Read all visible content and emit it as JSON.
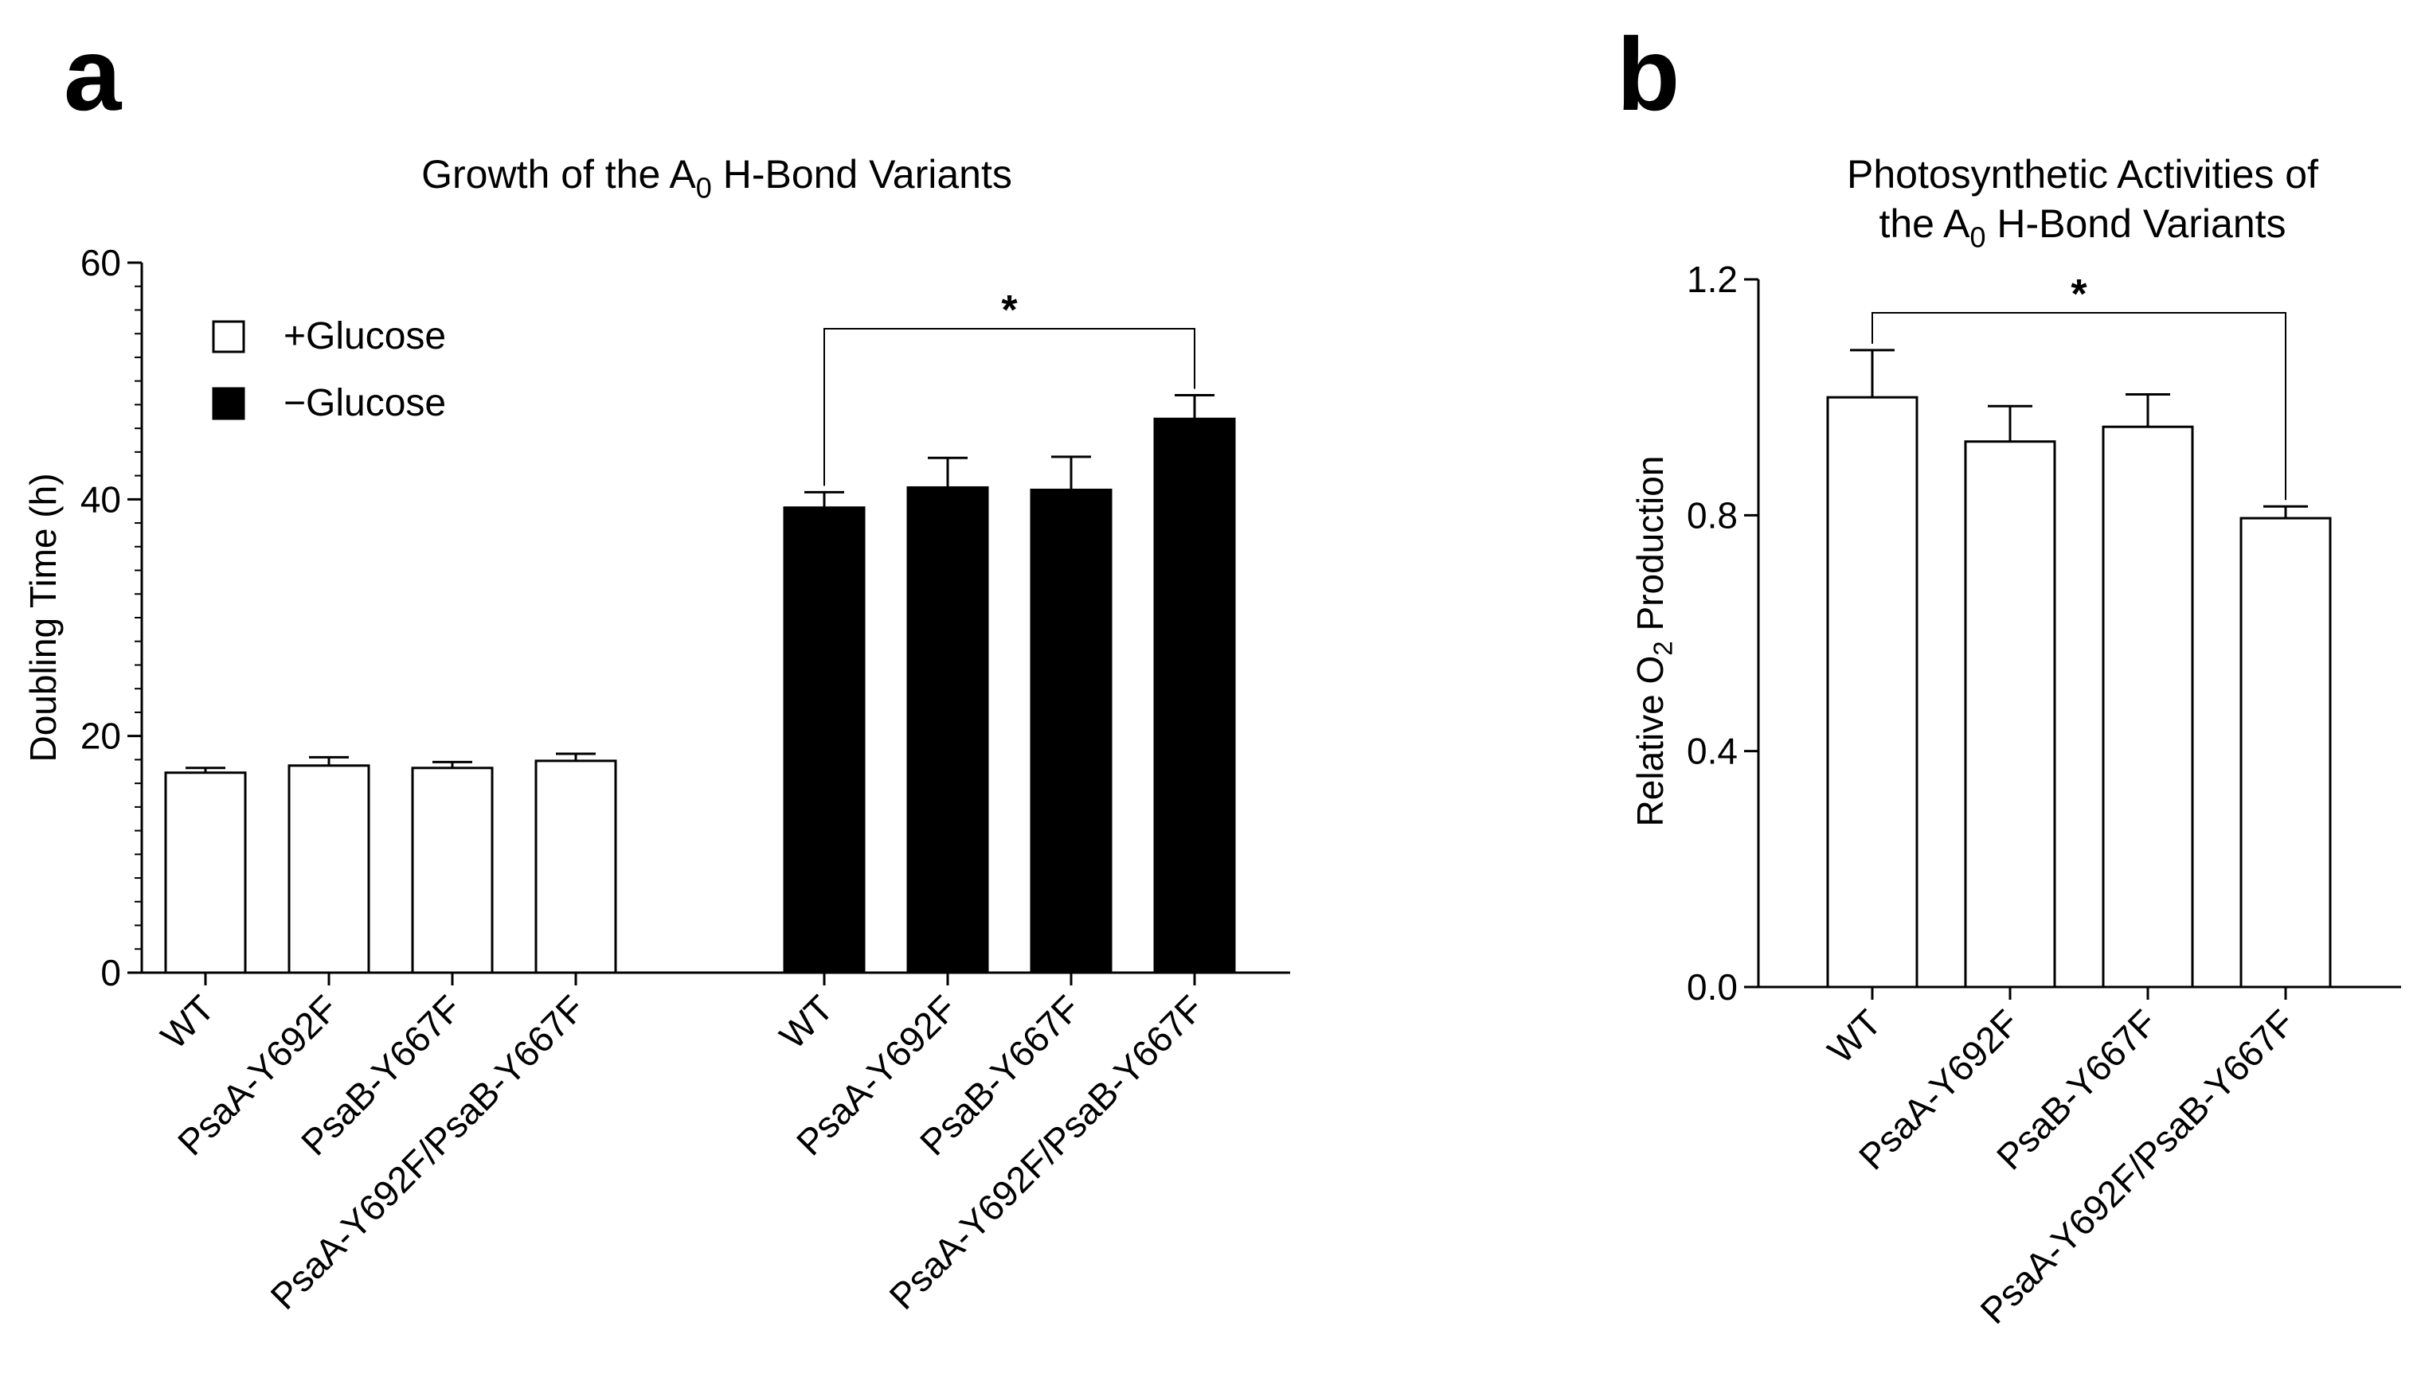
{
  "panels": {
    "a": {
      "letter": "a"
    },
    "b": {
      "letter": "b"
    }
  },
  "chart_data": [
    {
      "type": "bar",
      "panel": "a",
      "title": "Growth of the A0 H-Bond Variants",
      "title_parts": {
        "before": "Growth of the A",
        "sub": "0",
        "after": " H-Bond Variants"
      },
      "xlabel": "",
      "ylabel": "Doubling Time (h)",
      "ylim": [
        0,
        60
      ],
      "yticks": [
        0,
        20,
        40,
        60
      ],
      "minor_tick_step": 2,
      "categories": [
        "WT",
        "PsaA-Y692F",
        "PsaB-Y667F",
        "PsaA-Y692F/PsaB-Y667F"
      ],
      "series": [
        {
          "name": "+Glucose",
          "fill": "#ffffff",
          "values": [
            16.9,
            17.5,
            17.3,
            17.9
          ],
          "errors": [
            0.4,
            0.7,
            0.5,
            0.6
          ]
        },
        {
          "name": "−Glucose",
          "fill": "#000000",
          "values": [
            39.3,
            41.0,
            40.8,
            46.8
          ],
          "errors": [
            1.3,
            2.5,
            2.8,
            2.0
          ]
        }
      ],
      "legend": {
        "position": "top-left",
        "entries": [
          "+Glucose",
          "−Glucose"
        ]
      },
      "significance": {
        "label": "*",
        "between": [
          "−Glucose WT",
          "−Glucose PsaA-Y692F/PsaB-Y667F"
        ]
      },
      "colors": {
        "axis": "#000000",
        "bar_stroke": "#000000"
      }
    },
    {
      "type": "bar",
      "panel": "b",
      "title": "Photosynthetic Activities of the A0 H-Bond Variants",
      "title_lines": [
        "Photosynthetic Activities of"
      ],
      "title_parts": {
        "before": "the A",
        "sub": "0",
        "after": " H-Bond Variants"
      },
      "xlabel": "",
      "ylabel": "Relative O2 Production",
      "ylabel_parts": {
        "before": "Relative O",
        "sub": "2",
        "after": " Production"
      },
      "ylim": [
        0,
        1.2
      ],
      "yticks": [
        "0.0",
        "0.4",
        "0.8",
        "1.2"
      ],
      "categories": [
        "WT",
        "PsaA-Y692F",
        "PsaB-Y667F",
        "PsaA-Y692F/PsaB-Y667F"
      ],
      "values": [
        1.0,
        0.925,
        0.95,
        0.795
      ],
      "errors": [
        0.08,
        0.06,
        0.055,
        0.02
      ],
      "significance": {
        "label": "*",
        "between": [
          "WT",
          "PsaA-Y692F/PsaB-Y667F"
        ]
      },
      "colors": {
        "fill": "#ffffff",
        "axis": "#000000",
        "bar_stroke": "#000000"
      }
    }
  ]
}
